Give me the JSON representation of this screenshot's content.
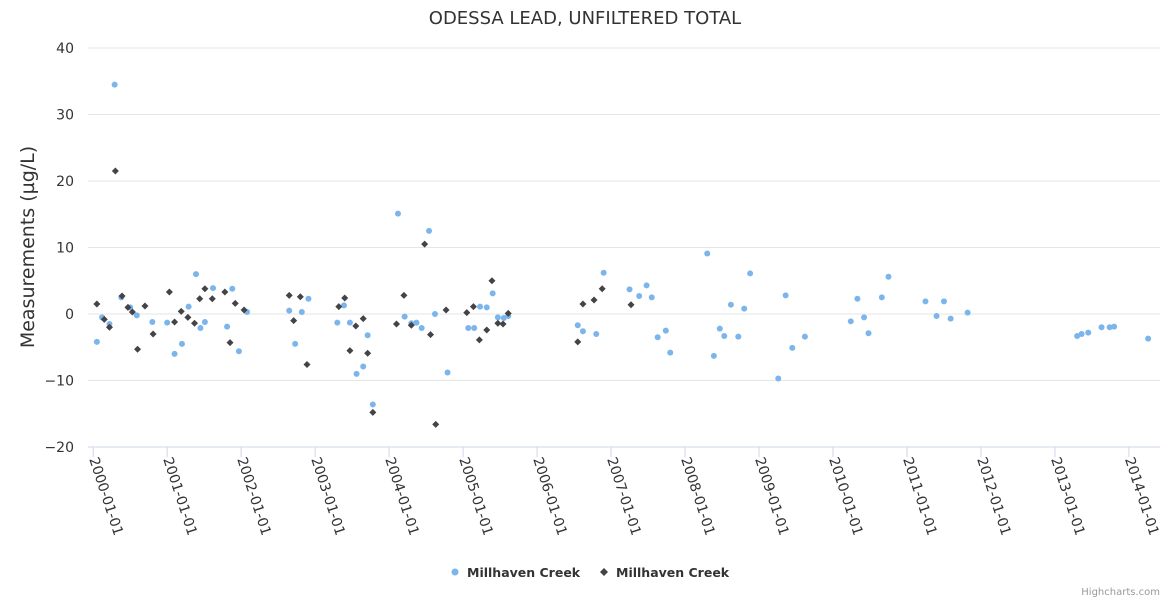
{
  "chart_data": {
    "type": "scatter",
    "title": "ODESSA LEAD, UNFILTERED TOTAL",
    "ylabel": "Measurements (µg/L)",
    "xlabel": "",
    "ylim": [
      -20,
      40
    ],
    "yticks": [
      "−20",
      "−10",
      "0",
      "10",
      "20",
      "30",
      "40"
    ],
    "ytick_values": [
      -20,
      -10,
      0,
      10,
      20,
      30,
      40
    ],
    "xticks": [
      "2000-01-01",
      "2001-01-01",
      "2002-01-01",
      "2003-01-01",
      "2004-01-01",
      "2005-01-01",
      "2006-01-01",
      "2007-01-01",
      "2008-01-01",
      "2009-01-01",
      "2010-01-01",
      "2011-01-01",
      "2012-01-01",
      "2013-01-01",
      "2014-01-01"
    ],
    "xtick_years": [
      2000,
      2001,
      2002,
      2003,
      2004,
      2005,
      2006,
      2007,
      2008,
      2009,
      2010,
      2011,
      2012,
      2013,
      2014
    ],
    "x_range_years": [
      1999.93,
      2014.42
    ],
    "series": [
      {
        "name": "Millhaven Creek",
        "color": "#7cb5ec",
        "marker": "circle",
        "points": [
          [
            2000.05,
            -4.2
          ],
          [
            2000.12,
            -0.5
          ],
          [
            2000.22,
            -1.5
          ],
          [
            2000.29,
            34.5
          ],
          [
            2000.38,
            2.5
          ],
          [
            2000.5,
            1.0
          ],
          [
            2000.59,
            -0.2
          ],
          [
            2000.8,
            -1.2
          ],
          [
            2001.0,
            -1.3
          ],
          [
            2001.1,
            -6.0
          ],
          [
            2001.2,
            -4.5
          ],
          [
            2001.29,
            1.1
          ],
          [
            2001.39,
            6.0
          ],
          [
            2001.45,
            -2.1
          ],
          [
            2001.51,
            -1.2
          ],
          [
            2001.62,
            3.9
          ],
          [
            2001.81,
            -1.9
          ],
          [
            2001.88,
            3.8
          ],
          [
            2001.97,
            -5.6
          ],
          [
            2002.08,
            0.3
          ],
          [
            2002.65,
            0.5
          ],
          [
            2002.73,
            -4.5
          ],
          [
            2002.82,
            0.3
          ],
          [
            2002.91,
            2.3
          ],
          [
            2003.3,
            -1.3
          ],
          [
            2003.39,
            1.3
          ],
          [
            2003.47,
            -1.3
          ],
          [
            2003.56,
            -9.0
          ],
          [
            2003.65,
            -7.9
          ],
          [
            2003.71,
            -3.2
          ],
          [
            2003.78,
            -13.6
          ],
          [
            2004.12,
            15.1
          ],
          [
            2004.21,
            -0.4
          ],
          [
            2004.3,
            -1.4
          ],
          [
            2004.37,
            -1.3
          ],
          [
            2004.44,
            -2.1
          ],
          [
            2004.54,
            12.5
          ],
          [
            2004.62,
            0.0
          ],
          [
            2004.79,
            -8.8
          ],
          [
            2005.07,
            -2.1
          ],
          [
            2005.15,
            -2.1
          ],
          [
            2005.23,
            1.1
          ],
          [
            2005.32,
            1.0
          ],
          [
            2005.4,
            3.1
          ],
          [
            2005.47,
            -0.5
          ],
          [
            2005.55,
            -0.6
          ],
          [
            2005.61,
            -0.3
          ],
          [
            2006.55,
            -1.7
          ],
          [
            2006.62,
            -2.6
          ],
          [
            2006.8,
            -3.0
          ],
          [
            2006.9,
            6.2
          ],
          [
            2007.25,
            3.7
          ],
          [
            2007.38,
            2.7
          ],
          [
            2007.48,
            4.3
          ],
          [
            2007.55,
            2.5
          ],
          [
            2007.63,
            -3.5
          ],
          [
            2007.74,
            -2.5
          ],
          [
            2007.8,
            -5.8
          ],
          [
            2008.3,
            9.1
          ],
          [
            2008.39,
            -6.3
          ],
          [
            2008.47,
            -2.2
          ],
          [
            2008.53,
            -3.3
          ],
          [
            2008.62,
            1.4
          ],
          [
            2008.72,
            -3.4
          ],
          [
            2008.8,
            0.8
          ],
          [
            2008.88,
            6.1
          ],
          [
            2009.26,
            -9.7
          ],
          [
            2009.36,
            2.8
          ],
          [
            2009.45,
            -5.1
          ],
          [
            2009.62,
            -3.4
          ],
          [
            2010.24,
            -1.1
          ],
          [
            2010.33,
            2.3
          ],
          [
            2010.42,
            -0.5
          ],
          [
            2010.48,
            -2.9
          ],
          [
            2010.66,
            2.5
          ],
          [
            2010.75,
            5.6
          ],
          [
            2011.25,
            1.9
          ],
          [
            2011.4,
            -0.3
          ],
          [
            2011.5,
            1.9
          ],
          [
            2011.59,
            -0.7
          ],
          [
            2011.82,
            0.2
          ],
          [
            2013.3,
            -3.3
          ],
          [
            2013.36,
            -3.0
          ],
          [
            2013.45,
            -2.8
          ],
          [
            2013.63,
            -2.0
          ],
          [
            2013.74,
            -2.0
          ],
          [
            2013.8,
            -1.9
          ],
          [
            2014.26,
            -3.7
          ]
        ]
      },
      {
        "name": "Millhaven Creek",
        "color": "#434348",
        "marker": "diamond",
        "points": [
          [
            2000.05,
            1.5
          ],
          [
            2000.15,
            -0.8
          ],
          [
            2000.22,
            -2.0
          ],
          [
            2000.3,
            21.5
          ],
          [
            2000.39,
            2.7
          ],
          [
            2000.47,
            1.0
          ],
          [
            2000.53,
            0.3
          ],
          [
            2000.6,
            -5.3
          ],
          [
            2000.7,
            1.2
          ],
          [
            2000.81,
            -3.0
          ],
          [
            2001.03,
            3.3
          ],
          [
            2001.1,
            -1.2
          ],
          [
            2001.19,
            0.4
          ],
          [
            2001.28,
            -0.5
          ],
          [
            2001.37,
            -1.4
          ],
          [
            2001.44,
            2.3
          ],
          [
            2001.51,
            3.8
          ],
          [
            2001.61,
            2.3
          ],
          [
            2001.78,
            3.3
          ],
          [
            2001.85,
            -4.3
          ],
          [
            2001.92,
            1.6
          ],
          [
            2002.04,
            0.6
          ],
          [
            2002.65,
            2.8
          ],
          [
            2002.71,
            -1.0
          ],
          [
            2002.8,
            2.6
          ],
          [
            2002.89,
            -7.6
          ],
          [
            2003.32,
            1.1
          ],
          [
            2003.4,
            2.4
          ],
          [
            2003.47,
            -5.5
          ],
          [
            2003.55,
            -1.8
          ],
          [
            2003.65,
            -0.7
          ],
          [
            2003.71,
            -5.9
          ],
          [
            2003.78,
            -14.8
          ],
          [
            2004.1,
            -1.5
          ],
          [
            2004.2,
            2.8
          ],
          [
            2004.3,
            -1.7
          ],
          [
            2004.48,
            10.5
          ],
          [
            2004.56,
            -3.1
          ],
          [
            2004.63,
            -16.6
          ],
          [
            2004.77,
            0.6
          ],
          [
            2005.05,
            0.2
          ],
          [
            2005.14,
            1.1
          ],
          [
            2005.22,
            -3.9
          ],
          [
            2005.32,
            -2.4
          ],
          [
            2005.39,
            5.0
          ],
          [
            2005.47,
            -1.4
          ],
          [
            2005.54,
            -1.5
          ],
          [
            2005.61,
            0.1
          ],
          [
            2006.55,
            -4.2
          ],
          [
            2006.62,
            1.5
          ],
          [
            2006.77,
            2.1
          ],
          [
            2006.88,
            3.8
          ],
          [
            2007.27,
            1.4
          ]
        ]
      }
    ],
    "legend": {
      "position": "bottom-center",
      "items": [
        "Millhaven Creek",
        "Millhaven Creek"
      ]
    },
    "credits": "Highcharts.com"
  }
}
